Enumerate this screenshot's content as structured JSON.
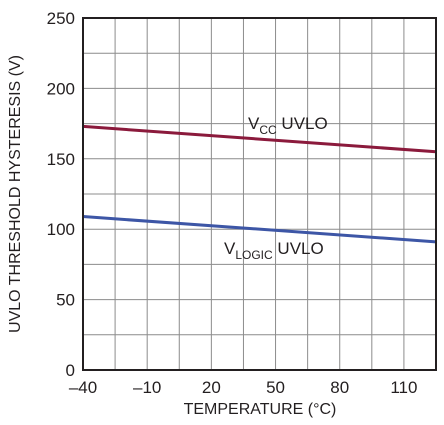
{
  "chart_data": {
    "type": "line",
    "xlabel": "TEMPERATURE (°C)",
    "ylabel": "UVLO THRESHOLD HYSTERESIS (V)",
    "xlim": [
      -40,
      125
    ],
    "ylim": [
      0,
      250
    ],
    "x_ticks": [
      -40,
      -10,
      20,
      50,
      80,
      110
    ],
    "x_tick_labels": [
      "–40",
      "–10",
      "20",
      "50",
      "80",
      "110"
    ],
    "y_ticks": [
      0,
      50,
      100,
      150,
      200,
      250
    ],
    "y_tick_labels": [
      "0",
      "50",
      "100",
      "150",
      "200",
      "250"
    ],
    "grid": true,
    "series": [
      {
        "label_main": "V",
        "label_sub": "CC",
        "label_suffix": " UVLO",
        "color": "#8b1a3c",
        "x": [
          -40,
          125
        ],
        "y": [
          173,
          155
        ]
      },
      {
        "label_main": "V",
        "label_sub": "LOGIC",
        "label_suffix": " UVLO",
        "color": "#3d56a6",
        "x": [
          -40,
          125
        ],
        "y": [
          109,
          91
        ]
      }
    ]
  }
}
